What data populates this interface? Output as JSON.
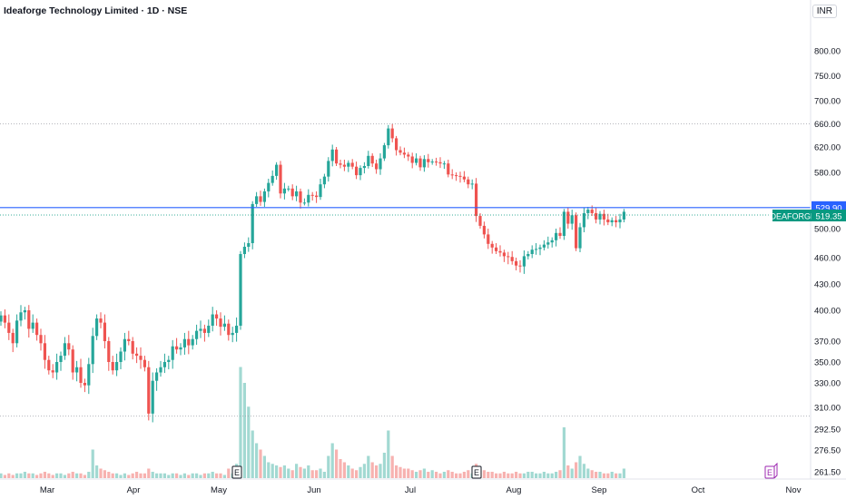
{
  "header": {
    "title": "Ideaforge Technology Limited · 1D · NSE",
    "currency": "INR"
  },
  "colors": {
    "up": "#26a69a",
    "down": "#ef5350",
    "vol_up": "#a2d9d2",
    "vol_down": "#f7b2b0",
    "line_blue": "#2962ff",
    "label_green": "#089981",
    "earnings": "#9c27b0"
  },
  "chart_data": {
    "type": "candlestick",
    "symbol": "IDEAFORGE",
    "x_labels": [
      "Mar",
      "Apr",
      "May",
      "Jun",
      "Jul",
      "Aug",
      "Sep",
      "Oct",
      "Nov"
    ],
    "y_ticks": [
      "800.00",
      "750.00",
      "700.00",
      "660.00",
      "620.00",
      "580.00",
      "500.00",
      "460.00",
      "430.00",
      "400.00",
      "370.00",
      "350.00",
      "330.00",
      "310.00",
      "292.50",
      "276.50",
      "261.50"
    ],
    "price_labels": [
      {
        "label": "529.90",
        "value": 529.9,
        "style": "blue"
      },
      {
        "label": "IDEAFORGE",
        "value": 519.35,
        "style": "green"
      },
      {
        "label": "519.35",
        "value": 519.35,
        "style": "green"
      }
    ],
    "horizontal_lines": [
      {
        "value": 529.9,
        "style": "solid"
      },
      {
        "value": 519.35,
        "style": "dotted"
      },
      {
        "value": 660,
        "style": "dotted"
      },
      {
        "value": 303,
        "style": "dotted"
      }
    ],
    "earnings_markers": [
      {
        "month": "May",
        "label": "E",
        "state": "past"
      },
      {
        "month": "Aug",
        "label": "E",
        "state": "past"
      },
      {
        "month": "Oct",
        "label": "E",
        "state": "upcoming"
      }
    ],
    "closes": [
      395,
      388,
      378,
      368,
      390,
      398,
      400,
      382,
      388,
      376,
      368,
      352,
      342,
      340,
      350,
      356,
      368,
      362,
      340,
      345,
      330,
      328,
      348,
      375,
      392,
      388,
      370,
      350,
      342,
      350,
      360,
      372,
      370,
      358,
      356,
      352,
      345,
      305,
      332,
      340,
      345,
      350,
      352,
      365,
      362,
      364,
      372,
      366,
      372,
      380,
      382,
      378,
      385,
      396,
      392,
      384,
      387,
      376,
      378,
      385,
      465,
      475,
      480,
      535,
      546,
      538,
      553,
      565,
      575,
      592,
      550,
      557,
      557,
      546,
      553,
      537,
      537,
      548,
      547,
      545,
      563,
      574,
      598,
      616,
      594,
      592,
      589,
      595,
      589,
      576,
      587,
      590,
      606,
      594,
      585,
      602,
      623,
      652,
      635,
      615,
      611,
      608,
      605,
      595,
      602,
      588,
      601,
      596,
      597,
      596,
      594,
      594,
      577,
      576,
      575,
      574,
      570,
      563,
      564,
      518,
      504,
      492,
      479,
      474,
      469,
      467,
      462,
      461,
      456,
      451,
      450,
      462,
      465,
      471,
      472,
      474,
      478,
      481,
      484,
      494,
      490,
      524,
      507,
      519,
      473,
      502,
      522,
      527,
      522,
      513,
      521,
      513,
      509,
      512,
      509,
      513,
      524
    ],
    "volumes": [
      3,
      2,
      3,
      2,
      3,
      3,
      4,
      3,
      3,
      2,
      3,
      4,
      3,
      2,
      3,
      3,
      2,
      3,
      4,
      3,
      3,
      2,
      4,
      18,
      8,
      6,
      5,
      4,
      3,
      3,
      2,
      3,
      2,
      3,
      4,
      3,
      3,
      6,
      4,
      3,
      3,
      3,
      2,
      3,
      3,
      2,
      3,
      2,
      3,
      3,
      2,
      3,
      3,
      4,
      3,
      3,
      2,
      6,
      3,
      9,
      70,
      60,
      45,
      30,
      22,
      18,
      14,
      10,
      9,
      8,
      7,
      8,
      6,
      5,
      9,
      7,
      6,
      8,
      5,
      5,
      6,
      4,
      14,
      22,
      18,
      12,
      10,
      8,
      6,
      5,
      7,
      9,
      14,
      10,
      8,
      9,
      16,
      30,
      14,
      8,
      7,
      6,
      6,
      5,
      4,
      5,
      6,
      4,
      5,
      4,
      3,
      4,
      5,
      4,
      3,
      3,
      4,
      5,
      3,
      9,
      6,
      5,
      4,
      4,
      3,
      3,
      4,
      3,
      3,
      4,
      3,
      3,
      4,
      4,
      3,
      3,
      4,
      3,
      3,
      4,
      5,
      32,
      8,
      6,
      10,
      14,
      9,
      6,
      5,
      4,
      4,
      3,
      3,
      4,
      3,
      3,
      6
    ]
  }
}
